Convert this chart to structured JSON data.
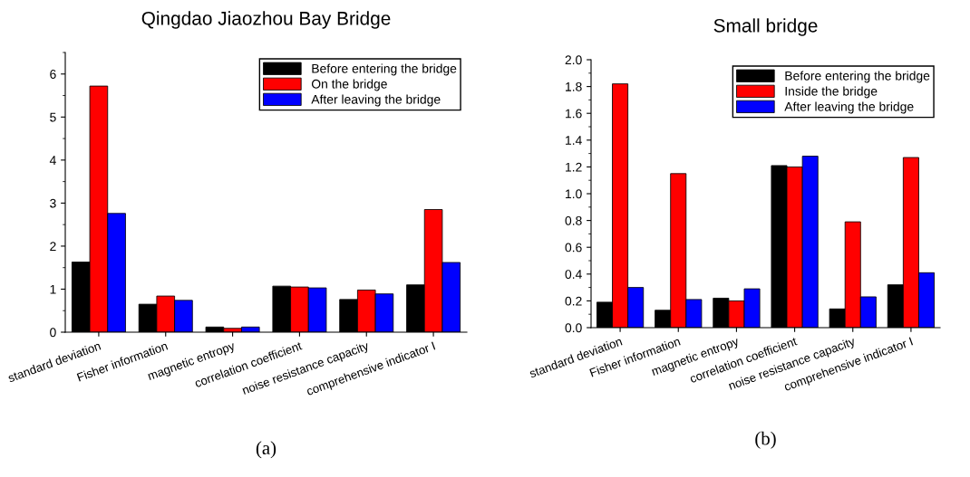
{
  "chart_data": [
    {
      "type": "bar",
      "title": "Qingdao Jiaozhou Bay Bridge",
      "categories": [
        "standard deviation",
        "Fisher information",
        "magnetic entropy",
        "correlation coefficient",
        "noise resistance capacity",
        "comprehensive indicator I"
      ],
      "series": [
        {
          "name": "Before entering the bridge",
          "color": "#000000",
          "values": [
            1.63,
            0.65,
            0.12,
            1.07,
            0.76,
            1.1
          ]
        },
        {
          "name": "On the bridge",
          "color": "#ff0000",
          "values": [
            5.72,
            0.84,
            0.09,
            1.05,
            0.98,
            2.85
          ]
        },
        {
          "name": "After leaving the bridge",
          "color": "#0000ff",
          "values": [
            2.76,
            0.74,
            0.12,
            1.03,
            0.89,
            1.62
          ]
        }
      ],
      "ylim": [
        0,
        6.5
      ],
      "yticks": [
        0,
        1,
        2,
        3,
        4,
        5,
        6
      ],
      "legend": "top right",
      "grid": false,
      "annotations": [
        "(a)"
      ]
    },
    {
      "type": "bar",
      "title": "Small bridge",
      "categories": [
        "standard deviation",
        "Fisher information",
        "magnetic entropy",
        "correlation coefficient",
        "noise resistance capacity",
        "comprehensive indicator I"
      ],
      "series": [
        {
          "name": "Before entering the bridge",
          "color": "#000000",
          "values": [
            0.19,
            0.13,
            0.22,
            1.21,
            0.14,
            0.32
          ]
        },
        {
          "name": "Inside the bridge",
          "color": "#ff0000",
          "values": [
            1.82,
            1.15,
            0.2,
            1.2,
            0.79,
            1.27
          ]
        },
        {
          "name": "After leaving the bridge",
          "color": "#0000ff",
          "values": [
            0.3,
            0.21,
            0.29,
            1.28,
            0.23,
            0.41
          ]
        }
      ],
      "ylim": [
        0,
        2.0
      ],
      "yticks": [
        {
          "value": 0,
          "label": "0.0"
        },
        {
          "value": 0.2,
          "label": "0.2"
        },
        {
          "value": 0.4,
          "label": "0.4"
        },
        {
          "value": 0.6,
          "label": "0.6"
        },
        {
          "value": 0.8,
          "label": "0.8"
        },
        {
          "value": 1.0,
          "label": "1.0"
        },
        {
          "value": 1.2,
          "label": "1.2"
        },
        {
          "value": 1.4,
          "label": "1.4"
        },
        {
          "value": 1.6,
          "label": "1.6"
        },
        {
          "value": 1.8,
          "label": "1.8"
        },
        {
          "value": 2.0,
          "label": "2.0"
        }
      ],
      "legend": "top right",
      "grid": false,
      "annotations": [
        "(b)"
      ]
    }
  ]
}
